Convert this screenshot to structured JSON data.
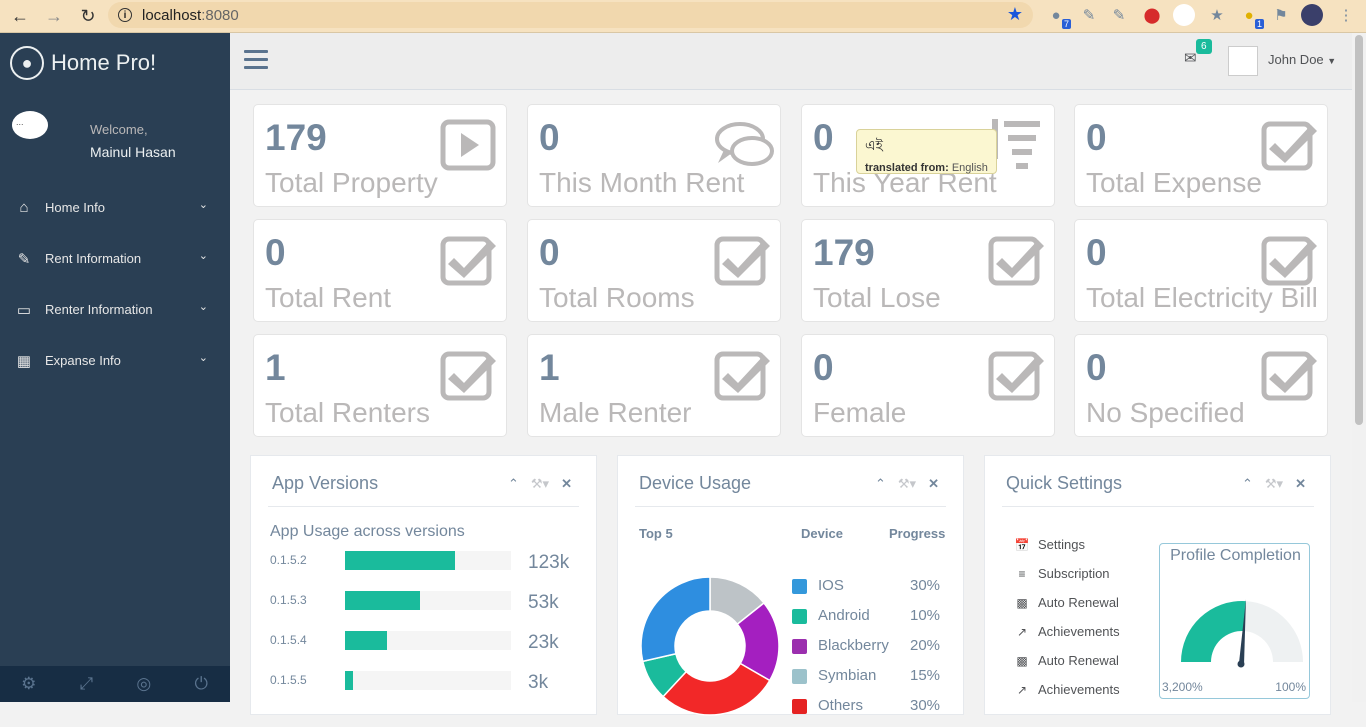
{
  "browser": {
    "url_host": "localhost",
    "url_port": ":8080",
    "ext_badge_1": "7",
    "ext_badge_2": "1"
  },
  "sidebar": {
    "brand": "Home Pro!",
    "avatar_alt": "...",
    "welcome": "Welcome,",
    "user_name": "Mainul Hasan",
    "items": [
      {
        "label": "Home Info",
        "icon": "home-icon"
      },
      {
        "label": "Rent Information",
        "icon": "edit-icon"
      },
      {
        "label": "Renter Information",
        "icon": "desktop-icon"
      },
      {
        "label": "Expanse Info",
        "icon": "table-icon"
      }
    ],
    "footer_icons": [
      "gear-icon",
      "fullscreen-icon",
      "eye-slash-icon",
      "power-icon"
    ]
  },
  "topnav": {
    "mail_count": "6",
    "user_name": "John Doe"
  },
  "tiles": [
    {
      "count": "179",
      "label": "Total Property",
      "icon": "play-icon"
    },
    {
      "count": "0",
      "label": "This Month Rent",
      "icon": "comments-icon"
    },
    {
      "count": "0",
      "label": "This Year Rent",
      "icon": "sort-amount-icon"
    },
    {
      "count": "0",
      "label": "Total Expense",
      "icon": "check-square-icon"
    },
    {
      "count": "0",
      "label": "Total Rent",
      "icon": "check-square-icon"
    },
    {
      "count": "0",
      "label": "Total Rooms",
      "icon": "check-square-icon"
    },
    {
      "count": "179",
      "label": "Total Lose",
      "icon": "check-square-icon"
    },
    {
      "count": "0",
      "label": "Total Electricity Bill",
      "icon": "check-square-icon"
    },
    {
      "count": "1",
      "label": "Total Renters",
      "icon": "check-square-icon"
    },
    {
      "count": "1",
      "label": "Male Renter",
      "icon": "check-square-icon"
    },
    {
      "count": "0",
      "label": "Female",
      "icon": "check-square-icon"
    },
    {
      "count": "0",
      "label": "No Specified",
      "icon": "check-square-icon"
    }
  ],
  "tooltip": {
    "word": "এই",
    "from_label": "translated from:",
    "from_lang": "English"
  },
  "app_versions": {
    "title": "App Versions",
    "subtitle": "App Usage across versions",
    "rows": [
      {
        "version": "0.1.5.2",
        "value": "123k",
        "fill_pct": 66
      },
      {
        "version": "0.1.5.3",
        "value": "53k",
        "fill_pct": 45
      },
      {
        "version": "0.1.5.4",
        "value": "23k",
        "fill_pct": 25
      },
      {
        "version": "0.1.5.5",
        "value": "3k",
        "fill_pct": 5
      }
    ]
  },
  "device_usage": {
    "title": "Device Usage",
    "col_top": "Top 5",
    "col_device": "Device",
    "col_progress": "Progress",
    "rows": [
      {
        "name": "IOS",
        "pct": "30%",
        "color": "#3498db"
      },
      {
        "name": "Android",
        "pct": "10%",
        "color": "#1abb9c"
      },
      {
        "name": "Blackberry",
        "pct": "20%",
        "color": "#9b2fae"
      },
      {
        "name": "Symbian",
        "pct": "15%",
        "color": "#9cc2cb"
      },
      {
        "name": "Others",
        "pct": "30%",
        "color": "#e52222"
      }
    ],
    "donut": [
      {
        "label": "IOS",
        "value": 30,
        "color": "#2e8ee0"
      },
      {
        "label": "Android",
        "value": 10,
        "color": "#1abb9c"
      },
      {
        "label": "Others",
        "value": 30,
        "color": "#f22828"
      },
      {
        "label": "Blackberry",
        "value": 20,
        "color": "#a41fc0"
      },
      {
        "label": "Symbian",
        "value": 15,
        "color": "#bdc3c7"
      }
    ]
  },
  "quick_settings": {
    "title": "Quick Settings",
    "items": [
      {
        "label": "Settings",
        "icon": "calendar-icon"
      },
      {
        "label": "Subscription",
        "icon": "bars-icon"
      },
      {
        "label": "Auto Renewal",
        "icon": "bar-chart-icon"
      },
      {
        "label": "Achievements",
        "icon": "line-chart-icon"
      },
      {
        "label": "Auto Renewal",
        "icon": "bar-chart-icon"
      },
      {
        "label": "Achievements",
        "icon": "line-chart-icon"
      }
    ],
    "profile_title": "Profile Completion",
    "gauge_min": "3,200%",
    "gauge_max": "100%",
    "gauge_level": 0.52
  }
}
